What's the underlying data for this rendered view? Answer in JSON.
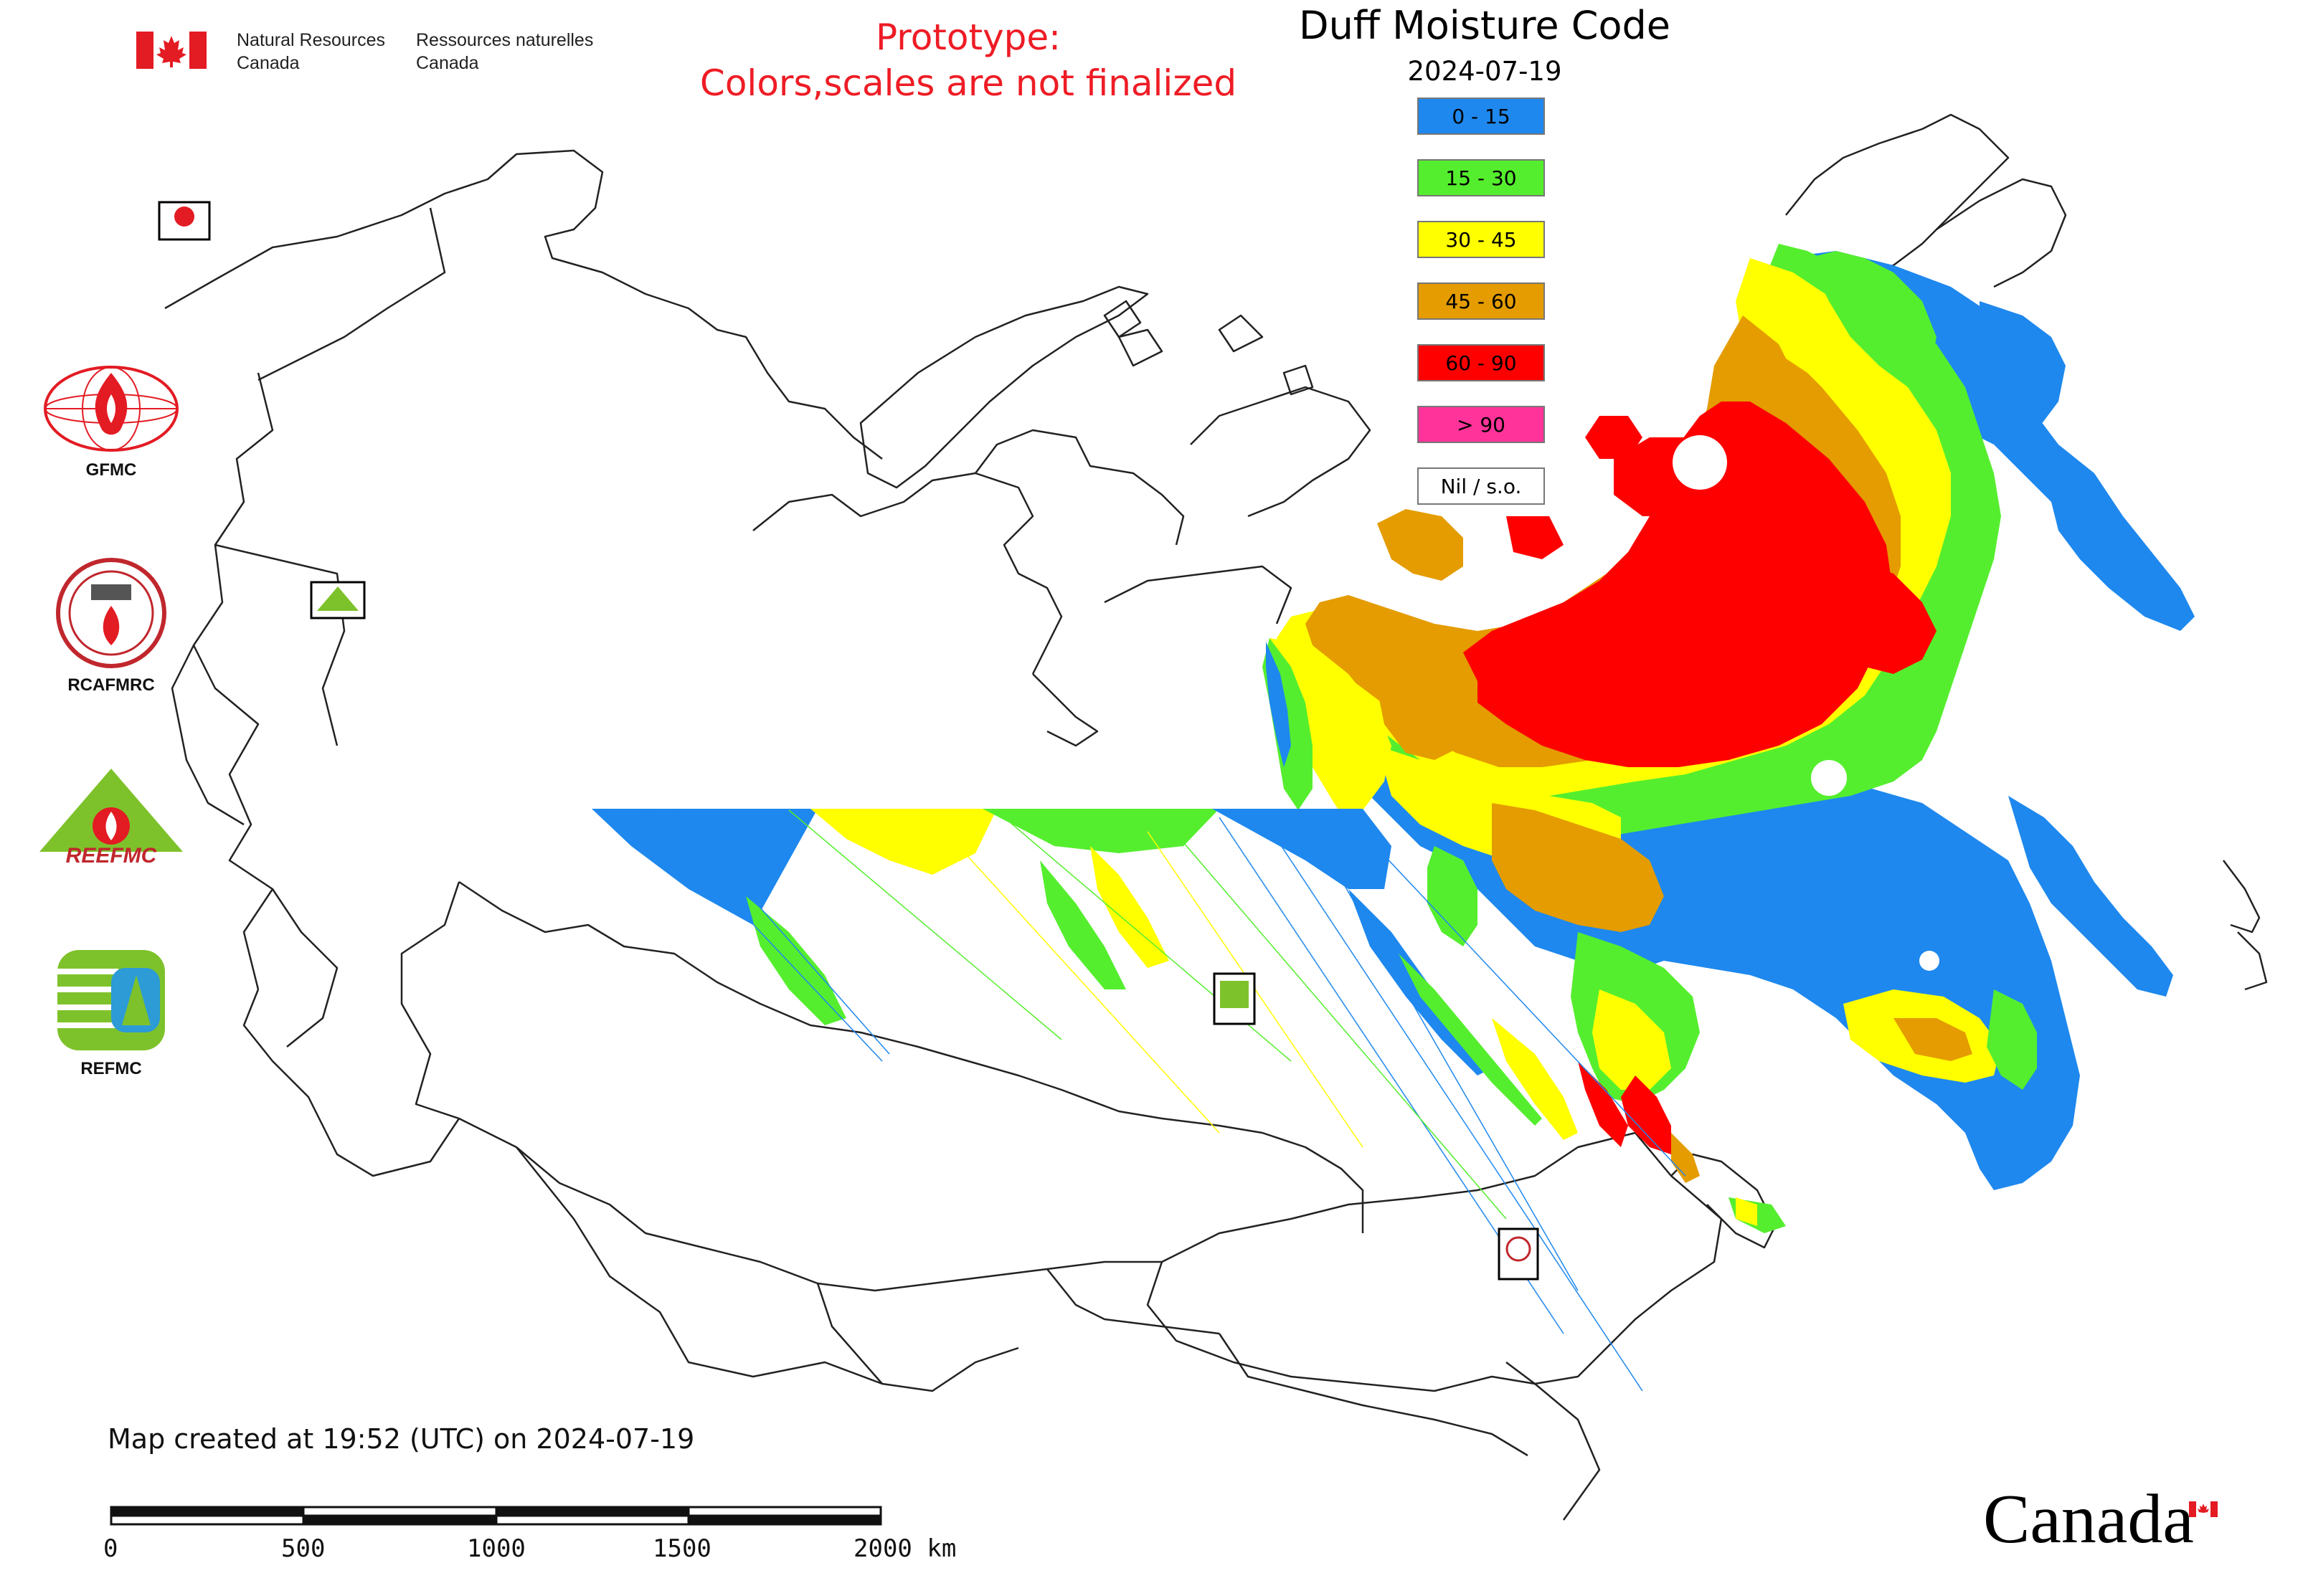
{
  "header": {
    "agency_en": [
      "Natural Resources",
      "Canada"
    ],
    "agency_fr": [
      "Ressources naturelles",
      "Canada"
    ],
    "prototype_line1": "Prototype:",
    "prototype_line2": "Colors,scales are not finalized"
  },
  "legend": {
    "title": "Duff Moisture Code",
    "date": "2024-07-19",
    "items": [
      {
        "label": "0 - 15",
        "color": "#1e88ee"
      },
      {
        "label": "15 - 30",
        "color": "#55ee2e"
      },
      {
        "label": "30 - 45",
        "color": "#ffff00"
      },
      {
        "label": "45 - 60",
        "color": "#e49c00"
      },
      {
        "label": "60 - 90",
        "color": "#ff0000"
      },
      {
        "label": "> 90",
        "color": "#ff3399"
      },
      {
        "label": "Nil / s.o.",
        "color": "#ffffff"
      }
    ]
  },
  "side_logos": [
    {
      "label": "GFMC"
    },
    {
      "label": "RCAFMRC"
    },
    {
      "label": "REEFMC"
    },
    {
      "label": "REFMC"
    }
  ],
  "footer": {
    "created": "Map created at 19:52 (UTC) on 2024-07-19",
    "scale_labels": [
      "0",
      "500",
      "1000",
      "1500",
      "2000 km"
    ],
    "wordmark": "Canada"
  },
  "colors": {
    "boundary": "#222222",
    "proto_text": "#ee1c25",
    "canada_flag_red": "#e31b23"
  },
  "icons": [
    "canada-flag-icon",
    "gfmc-logo-icon",
    "rcafmrc-logo-icon",
    "reefmc-logo-icon",
    "refmc-logo-icon"
  ]
}
